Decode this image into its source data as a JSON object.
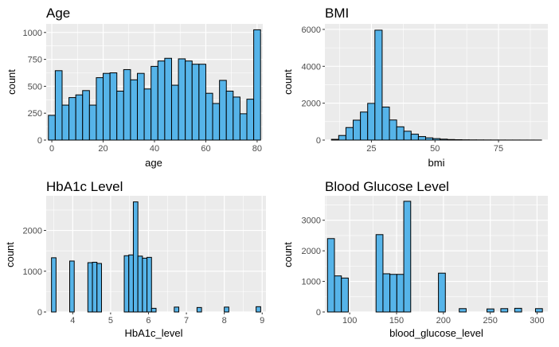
{
  "chart_data": [
    {
      "type": "bar",
      "title": "Age",
      "xlabel": "age",
      "ylabel": "count",
      "xlim": [
        -2.2,
        82.2
      ],
      "ylim": [
        0,
        1080
      ],
      "x_ticks": [
        0,
        20,
        40,
        60,
        80
      ],
      "y_ticks": [
        0,
        250,
        500,
        750,
        1000
      ],
      "bin_width": 2.67,
      "bin_centers": [
        0,
        2.67,
        5.33,
        8,
        10.67,
        13.33,
        16,
        18.67,
        21.33,
        24,
        26.67,
        29.33,
        32,
        34.67,
        37.33,
        40,
        42.67,
        45.33,
        48,
        50.67,
        53.33,
        56,
        58.67,
        61.33,
        64,
        66.67,
        69.33,
        72,
        74.67,
        77.33,
        80
      ],
      "values": [
        230,
        645,
        325,
        395,
        420,
        460,
        325,
        580,
        620,
        625,
        455,
        655,
        560,
        620,
        475,
        685,
        735,
        760,
        510,
        755,
        735,
        705,
        705,
        435,
        340,
        555,
        455,
        400,
        245,
        380,
        1025
      ],
      "grid": true
    },
    {
      "type": "bar",
      "title": "BMI",
      "xlabel": "bmi",
      "ylabel": "count",
      "xlim": [
        6.7,
        94.4
      ],
      "ylim": [
        0,
        6300
      ],
      "x_ticks": [
        25,
        50,
        75
      ],
      "y_ticks": [
        0,
        2000,
        4000,
        6000
      ],
      "bin_width": 2.85,
      "bin_centers": [
        10.7,
        13.55,
        16.4,
        19.25,
        22.1,
        24.95,
        27.8,
        30.65,
        33.5,
        36.35,
        39.2,
        42.05,
        44.9,
        47.75,
        50.6,
        53.45,
        56.3,
        59.15,
        62,
        64.85,
        67.7,
        70.55,
        73.4,
        76.25,
        79.1,
        81.95,
        84.8,
        87.65,
        90.5
      ],
      "values": [
        40,
        250,
        680,
        1080,
        1520,
        1990,
        5960,
        1790,
        1090,
        720,
        480,
        320,
        190,
        120,
        80,
        50,
        30,
        20,
        14,
        10,
        8,
        6,
        5,
        4,
        3,
        3,
        2,
        2,
        1
      ],
      "grid": true
    },
    {
      "type": "bar",
      "title": "HbA1c Level",
      "xlabel": "HbA1c_level",
      "ylabel": "count",
      "xlim": [
        3.3,
        9.1
      ],
      "ylim": [
        0,
        2850
      ],
      "x_ticks": [
        4,
        5,
        6,
        7,
        8,
        9
      ],
      "y_ticks": [
        0,
        1000,
        2000
      ],
      "bin_width": 0.12,
      "bin_centers": [
        3.5,
        3.62,
        3.74,
        3.86,
        3.98,
        4.1,
        4.22,
        4.34,
        4.46,
        4.58,
        4.7,
        4.82,
        4.94,
        5.06,
        5.18,
        5.3,
        5.42,
        5.54,
        5.66,
        5.78,
        5.9,
        6.02,
        6.14,
        6.26,
        6.38,
        6.5,
        6.62,
        6.74,
        6.86,
        6.98,
        7.1,
        7.22,
        7.34,
        7.46,
        7.58,
        7.7,
        7.82,
        7.94,
        8.06,
        8.18,
        8.3,
        8.42,
        8.54,
        8.66,
        8.78,
        8.9
      ],
      "values": [
        1330,
        0,
        0,
        0,
        1250,
        0,
        0,
        0,
        1210,
        1220,
        1190,
        0,
        0,
        0,
        0,
        0,
        1380,
        1400,
        2700,
        1370,
        1320,
        1340,
        90,
        0,
        0,
        0,
        0,
        120,
        0,
        0,
        0,
        0,
        110,
        0,
        0,
        0,
        0,
        0,
        120,
        0,
        0,
        0,
        0,
        0,
        0,
        130
      ],
      "grid": true
    },
    {
      "type": "bar",
      "title": "Blood Glucose Level",
      "xlabel": "blood_glucose_level",
      "ylabel": "count",
      "xlim": [
        73.5,
        311.5
      ],
      "ylim": [
        0,
        3800
      ],
      "x_ticks": [
        100,
        150,
        200,
        250,
        300
      ],
      "y_ticks": [
        0,
        1000,
        2000,
        3000
      ],
      "bin_width": 7.4,
      "bin_centers": [
        80,
        87.4,
        94.8,
        102.2,
        109.6,
        117,
        124.4,
        131.8,
        139.2,
        146.6,
        154,
        161.4,
        168.8,
        176.2,
        183.6,
        191,
        198.4,
        205.8,
        213.2,
        220.6,
        228,
        235.4,
        242.8,
        250.2,
        257.6,
        265,
        272.4,
        279.8,
        287.2,
        294.6,
        302
      ],
      "values": [
        2400,
        1180,
        1110,
        0,
        0,
        0,
        0,
        2530,
        1250,
        1230,
        1230,
        3620,
        0,
        0,
        0,
        0,
        1270,
        0,
        0,
        110,
        0,
        0,
        0,
        100,
        0,
        110,
        0,
        120,
        0,
        0,
        110
      ],
      "grid": true
    }
  ],
  "colors": {
    "panel_background": "#ebebeb",
    "gridline": "#ffffff",
    "bar_fill": "#56b4e9",
    "bar_outline": "#000000",
    "tick_text": "#4d4d4d"
  }
}
